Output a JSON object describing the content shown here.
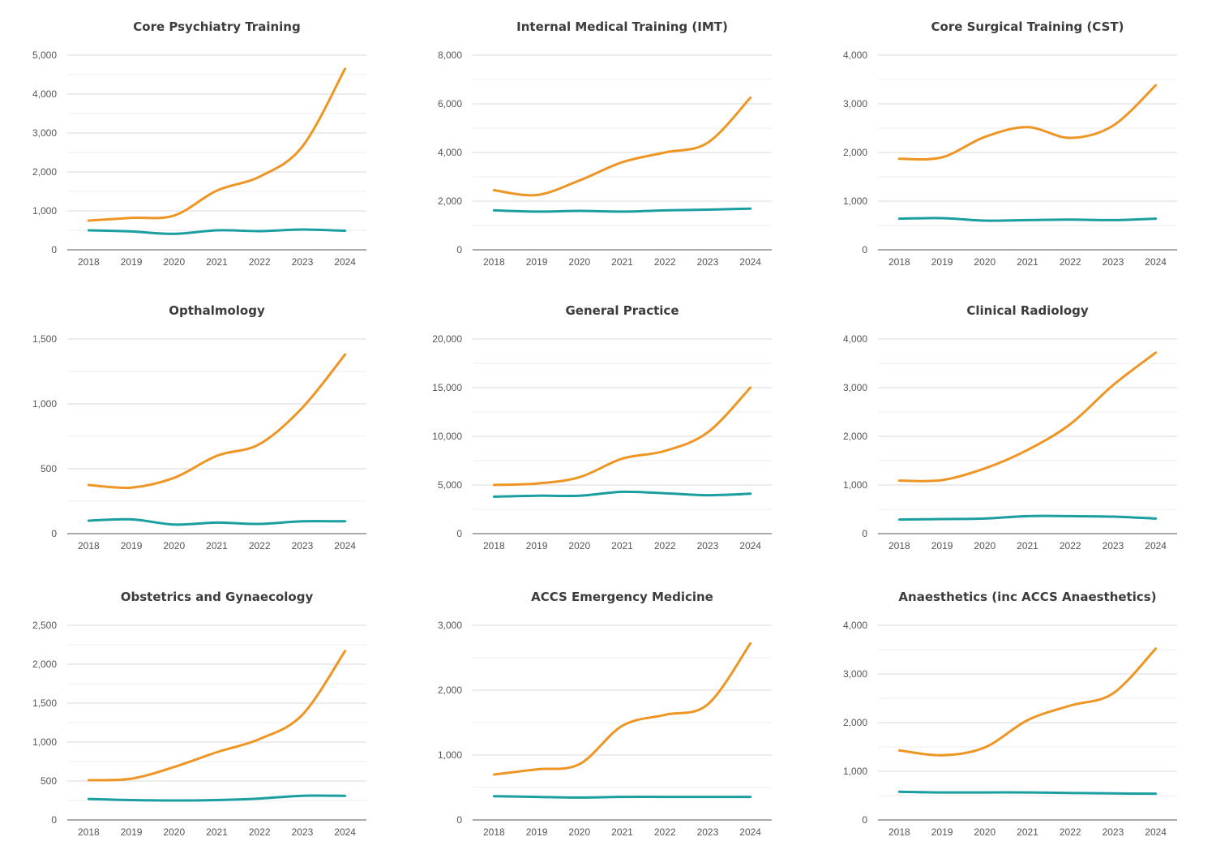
{
  "colors": {
    "orange": "#ee9524",
    "teal": "#1a9ea0"
  },
  "chart_data": [
    {
      "type": "line",
      "title": "Core Psychiatry Training",
      "categories": [
        "2018",
        "2019",
        "2020",
        "2021",
        "2022",
        "2023",
        "2024"
      ],
      "ylim": [
        0,
        5000
      ],
      "yticks": [
        "0",
        "1,000",
        "2,000",
        "3,000",
        "4,000",
        "5,000"
      ],
      "grid": true,
      "series": [
        {
          "color": "#ee9524",
          "values": [
            750,
            820,
            880,
            1520,
            1880,
            2650,
            4650
          ]
        },
        {
          "color": "#1a9ea0",
          "values": [
            500,
            470,
            410,
            500,
            480,
            520,
            490
          ]
        }
      ]
    },
    {
      "type": "line",
      "title": "Internal Medical Training (IMT)",
      "categories": [
        "2018",
        "2019",
        "2020",
        "2021",
        "2022",
        "2023",
        "2024"
      ],
      "ylim": [
        0,
        8000
      ],
      "yticks": [
        "0",
        "2,000",
        "4,000",
        "6,000",
        "8,000"
      ],
      "grid": true,
      "series": [
        {
          "color": "#ee9524",
          "values": [
            2450,
            2250,
            2850,
            3600,
            4000,
            4400,
            6250
          ]
        },
        {
          "color": "#1a9ea0",
          "values": [
            1620,
            1570,
            1600,
            1570,
            1620,
            1650,
            1690
          ]
        }
      ]
    },
    {
      "type": "line",
      "title": "Core Surgical Training (CST)",
      "categories": [
        "2018",
        "2019",
        "2020",
        "2021",
        "2022",
        "2023",
        "2024"
      ],
      "ylim": [
        0,
        4000
      ],
      "yticks": [
        "0",
        "1,000",
        "2,000",
        "3,000",
        "4,000"
      ],
      "grid": true,
      "series": [
        {
          "color": "#ee9524",
          "values": [
            1870,
            1900,
            2320,
            2520,
            2300,
            2550,
            3380
          ]
        },
        {
          "color": "#1a9ea0",
          "values": [
            640,
            650,
            600,
            610,
            620,
            610,
            640
          ]
        }
      ]
    },
    {
      "type": "line",
      "title": "Opthalmology",
      "categories": [
        "2018",
        "2019",
        "2020",
        "2021",
        "2022",
        "2023",
        "2024"
      ],
      "ylim": [
        0,
        1500
      ],
      "yticks": [
        "0",
        "500",
        "1,000",
        "1,500"
      ],
      "grid": true,
      "series": [
        {
          "color": "#ee9524",
          "values": [
            375,
            355,
            430,
            600,
            690,
            970,
            1380
          ]
        },
        {
          "color": "#1a9ea0",
          "values": [
            100,
            110,
            70,
            85,
            75,
            95,
            95
          ]
        }
      ]
    },
    {
      "type": "line",
      "title": "General Practice",
      "categories": [
        "2018",
        "2019",
        "2020",
        "2021",
        "2022",
        "2023",
        "2024"
      ],
      "ylim": [
        0,
        20000
      ],
      "yticks": [
        "0",
        "5,000",
        "10,000",
        "15,000",
        "20,000"
      ],
      "grid": true,
      "series": [
        {
          "color": "#ee9524",
          "values": [
            5000,
            5150,
            5800,
            7700,
            8500,
            10400,
            15000
          ]
        },
        {
          "color": "#1a9ea0",
          "values": [
            3800,
            3900,
            3900,
            4300,
            4150,
            3950,
            4100
          ]
        }
      ]
    },
    {
      "type": "line",
      "title": "Clinical Radiology",
      "categories": [
        "2018",
        "2019",
        "2020",
        "2021",
        "2022",
        "2023",
        "2024"
      ],
      "ylim": [
        0,
        4000
      ],
      "yticks": [
        "0",
        "1,000",
        "2,000",
        "3,000",
        "4,000"
      ],
      "grid": true,
      "series": [
        {
          "color": "#ee9524",
          "values": [
            1090,
            1100,
            1340,
            1720,
            2250,
            3050,
            3720
          ]
        },
        {
          "color": "#1a9ea0",
          "values": [
            290,
            300,
            310,
            360,
            360,
            350,
            310
          ]
        }
      ]
    },
    {
      "type": "line",
      "title": "Obstetrics and Gynaecology",
      "categories": [
        "2018",
        "2019",
        "2020",
        "2021",
        "2022",
        "2023",
        "2024"
      ],
      "ylim": [
        0,
        2500
      ],
      "yticks": [
        "0",
        "500",
        "1,000",
        "1,500",
        "2,000",
        "2,500"
      ],
      "grid": true,
      "series": [
        {
          "color": "#ee9524",
          "values": [
            510,
            530,
            680,
            870,
            1040,
            1350,
            2170
          ]
        },
        {
          "color": "#1a9ea0",
          "values": [
            270,
            255,
            250,
            255,
            275,
            310,
            310
          ]
        }
      ]
    },
    {
      "type": "line",
      "title": "ACCS Emergency Medicine",
      "categories": [
        "2018",
        "2019",
        "2020",
        "2021",
        "2022",
        "2023",
        "2024"
      ],
      "ylim": [
        0,
        3000
      ],
      "yticks": [
        "0",
        "1,000",
        "2,000",
        "3,000"
      ],
      "grid": true,
      "series": [
        {
          "color": "#ee9524",
          "values": [
            700,
            780,
            860,
            1450,
            1620,
            1780,
            2720
          ]
        },
        {
          "color": "#1a9ea0",
          "values": [
            365,
            355,
            345,
            355,
            355,
            355,
            355
          ]
        }
      ]
    },
    {
      "type": "line",
      "title": "Anaesthetics (inc ACCS Anaesthetics)",
      "categories": [
        "2018",
        "2019",
        "2020",
        "2021",
        "2022",
        "2023",
        "2024"
      ],
      "ylim": [
        0,
        4000
      ],
      "yticks": [
        "0",
        "1,000",
        "2,000",
        "3,000",
        "4,000"
      ],
      "grid": true,
      "series": [
        {
          "color": "#ee9524",
          "values": [
            1430,
            1330,
            1490,
            2050,
            2350,
            2600,
            3520
          ]
        },
        {
          "color": "#1a9ea0",
          "values": [
            580,
            565,
            565,
            565,
            555,
            545,
            540
          ]
        }
      ]
    }
  ]
}
